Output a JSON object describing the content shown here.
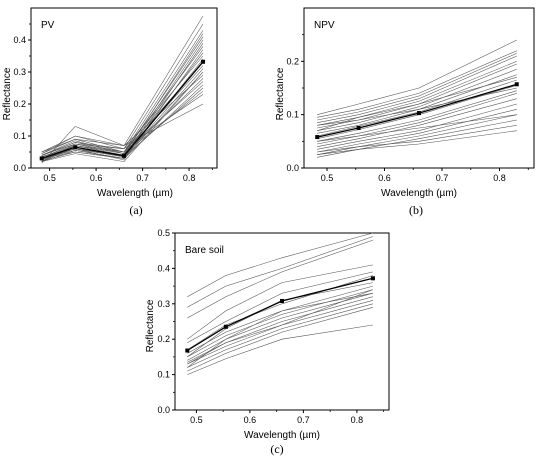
{
  "chart_data": [
    {
      "type": "line",
      "caption": "(a)",
      "label": "PV",
      "xlabel": "Wavelength (µm)",
      "ylabel": "Reflectance",
      "xlim": [
        0.46,
        0.86
      ],
      "ylim": [
        0,
        0.5
      ],
      "xticks": [
        0.5,
        0.6,
        0.7,
        0.8
      ],
      "yticks": [
        0.0,
        0.1,
        0.2,
        0.3,
        0.4
      ],
      "x": [
        0.483,
        0.555,
        0.66,
        0.83
      ],
      "mean": [
        0.03,
        0.065,
        0.038,
        0.332
      ],
      "samples": [
        [
          0.015,
          0.13,
          0.07,
          0.2
        ],
        [
          0.05,
          0.09,
          0.07,
          0.475
        ],
        [
          0.02,
          0.075,
          0.06,
          0.45
        ],
        [
          0.04,
          0.08,
          0.05,
          0.43
        ],
        [
          0.03,
          0.06,
          0.04,
          0.42
        ],
        [
          0.025,
          0.07,
          0.045,
          0.41
        ],
        [
          0.035,
          0.065,
          0.035,
          0.4
        ],
        [
          0.02,
          0.055,
          0.03,
          0.39
        ],
        [
          0.045,
          0.09,
          0.05,
          0.38
        ],
        [
          0.03,
          0.06,
          0.025,
          0.37
        ],
        [
          0.028,
          0.07,
          0.04,
          0.36
        ],
        [
          0.038,
          0.08,
          0.06,
          0.35
        ],
        [
          0.022,
          0.05,
          0.03,
          0.34
        ],
        [
          0.033,
          0.075,
          0.05,
          0.33
        ],
        [
          0.04,
          0.085,
          0.045,
          0.32
        ],
        [
          0.026,
          0.06,
          0.035,
          0.31
        ],
        [
          0.03,
          0.05,
          0.03,
          0.3
        ],
        [
          0.045,
          0.1,
          0.07,
          0.29
        ],
        [
          0.02,
          0.065,
          0.04,
          0.28
        ],
        [
          0.035,
          0.07,
          0.05,
          0.27
        ],
        [
          0.03,
          0.055,
          0.03,
          0.26
        ],
        [
          0.025,
          0.06,
          0.035,
          0.25
        ],
        [
          0.04,
          0.075,
          0.045,
          0.24
        ],
        [
          0.05,
          0.1,
          0.06,
          0.23
        ],
        [
          0.02,
          0.045,
          0.02,
          0.3
        ]
      ]
    },
    {
      "type": "line",
      "caption": "(b)",
      "label": "NPV",
      "xlabel": "Wavelength (µm)",
      "ylabel": "Reflectance",
      "xlim": [
        0.46,
        0.86
      ],
      "ylim": [
        0,
        0.3
      ],
      "xticks": [
        0.5,
        0.6,
        0.7,
        0.8
      ],
      "yticks": [
        0.0,
        0.1,
        0.2
      ],
      "x": [
        0.483,
        0.555,
        0.66,
        0.83
      ],
      "mean": [
        0.058,
        0.075,
        0.103,
        0.157
      ],
      "samples": [
        [
          0.1,
          0.12,
          0.15,
          0.24
        ],
        [
          0.095,
          0.11,
          0.14,
          0.22
        ],
        [
          0.09,
          0.105,
          0.135,
          0.215
        ],
        [
          0.085,
          0.1,
          0.13,
          0.21
        ],
        [
          0.08,
          0.095,
          0.125,
          0.2
        ],
        [
          0.075,
          0.09,
          0.12,
          0.195
        ],
        [
          0.07,
          0.085,
          0.115,
          0.185
        ],
        [
          0.065,
          0.08,
          0.11,
          0.175
        ],
        [
          0.06,
          0.078,
          0.105,
          0.165
        ],
        [
          0.055,
          0.072,
          0.1,
          0.155
        ],
        [
          0.05,
          0.065,
          0.09,
          0.145
        ],
        [
          0.045,
          0.06,
          0.085,
          0.14
        ],
        [
          0.04,
          0.055,
          0.08,
          0.13
        ],
        [
          0.035,
          0.05,
          0.07,
          0.12
        ],
        [
          0.03,
          0.045,
          0.065,
          0.11
        ],
        [
          0.025,
          0.04,
          0.06,
          0.1
        ],
        [
          0.02,
          0.035,
          0.055,
          0.09
        ],
        [
          0.03,
          0.04,
          0.05,
          0.08
        ],
        [
          0.025,
          0.035,
          0.045,
          0.07
        ],
        [
          0.05,
          0.06,
          0.075,
          0.1
        ],
        [
          0.08,
          0.09,
          0.11,
          0.15
        ],
        [
          0.07,
          0.095,
          0.12,
          0.17
        ]
      ]
    },
    {
      "type": "line",
      "caption": "(c)",
      "label": "Bare soil",
      "xlabel": "Wavelength (µm)",
      "ylabel": "Reflectance",
      "xlim": [
        0.46,
        0.86
      ],
      "ylim": [
        0,
        0.5
      ],
      "xticks": [
        0.5,
        0.6,
        0.7,
        0.8
      ],
      "yticks": [
        0.0,
        0.1,
        0.2,
        0.3,
        0.4,
        0.5
      ],
      "x": [
        0.483,
        0.555,
        0.66,
        0.83
      ],
      "mean": [
        0.168,
        0.235,
        0.308,
        0.372
      ],
      "samples": [
        [
          0.32,
          0.38,
          0.43,
          0.5
        ],
        [
          0.29,
          0.35,
          0.4,
          0.49
        ],
        [
          0.26,
          0.32,
          0.39,
          0.48
        ],
        [
          0.2,
          0.28,
          0.36,
          0.41
        ],
        [
          0.19,
          0.25,
          0.33,
          0.39
        ],
        [
          0.17,
          0.24,
          0.3,
          0.38
        ],
        [
          0.16,
          0.22,
          0.28,
          0.35
        ],
        [
          0.15,
          0.21,
          0.27,
          0.34
        ],
        [
          0.14,
          0.2,
          0.26,
          0.33
        ],
        [
          0.135,
          0.19,
          0.25,
          0.32
        ],
        [
          0.13,
          0.18,
          0.24,
          0.31
        ],
        [
          0.12,
          0.17,
          0.23,
          0.3
        ],
        [
          0.11,
          0.16,
          0.22,
          0.29
        ],
        [
          0.1,
          0.145,
          0.2,
          0.24
        ],
        [
          0.12,
          0.2,
          0.28,
          0.33
        ],
        [
          0.15,
          0.23,
          0.31,
          0.36
        ],
        [
          0.13,
          0.19,
          0.24,
          0.34
        ]
      ]
    }
  ]
}
